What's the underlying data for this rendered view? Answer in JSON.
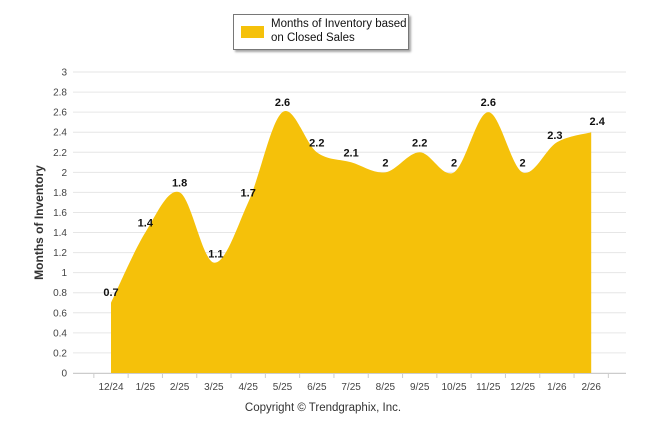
{
  "chart_data": {
    "type": "area",
    "legend": "Months of Inventory based on Closed Sales",
    "legend_position": "top-center",
    "ylabel": "Months of Inventory",
    "xlabel": "",
    "categories": [
      "12/24",
      "1/25",
      "2/25",
      "3/25",
      "4/25",
      "5/25",
      "6/25",
      "7/25",
      "8/25",
      "9/25",
      "10/25",
      "11/25",
      "12/25",
      "1/26",
      "2/26"
    ],
    "values": [
      0.7,
      1.4,
      1.8,
      1.1,
      1.7,
      2.6,
      2.2,
      2.1,
      2,
      2.2,
      2,
      2.6,
      2,
      2.3,
      2.4
    ],
    "ylim": [
      0,
      3
    ],
    "yticks": [
      "0",
      "0.2",
      "0.4",
      "0.6",
      "0.8",
      "1",
      "1.2",
      "1.4",
      "1.6",
      "1.8",
      "2",
      "2.2",
      "2.4",
      "2.6",
      "2.8",
      "3"
    ],
    "grid": true,
    "color": "#F5C10A"
  },
  "credit": "Copyright © Trendgraphix, Inc."
}
